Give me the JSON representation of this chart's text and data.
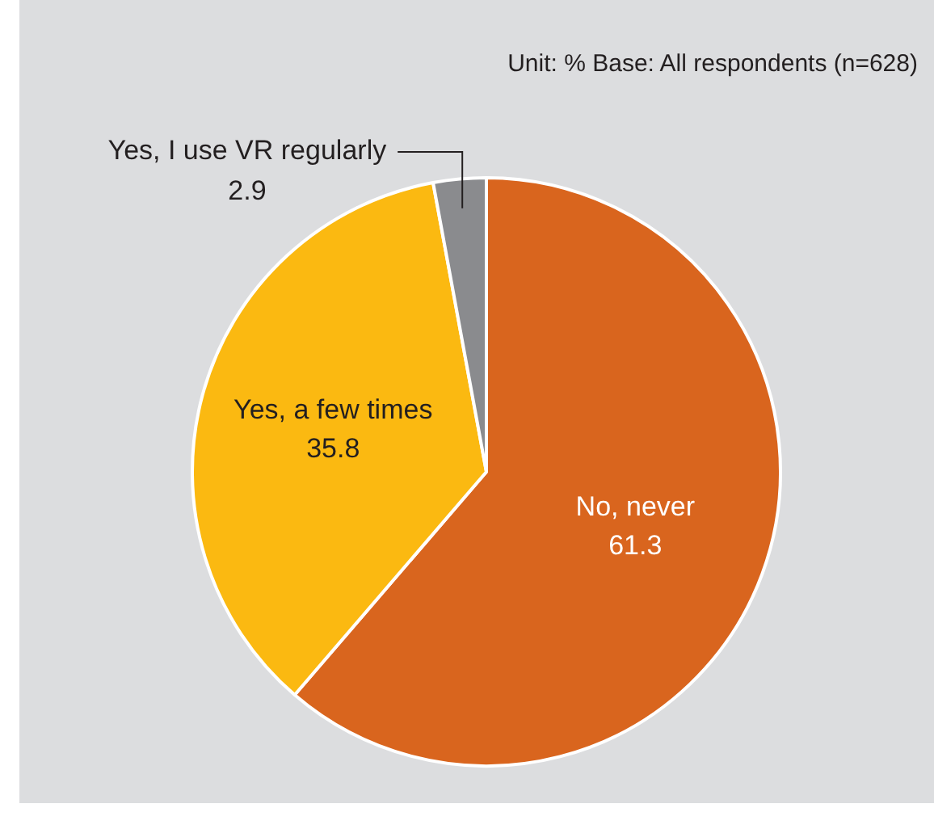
{
  "chart_data": {
    "type": "pie",
    "categories": [
      "No, never",
      "Yes, a few times",
      "Yes, I use VR regularly"
    ],
    "values": [
      61.3,
      35.8,
      2.9
    ],
    "colors": [
      "#d9651e",
      "#fbb911",
      "#8a8b8e"
    ],
    "data_labels": true,
    "legend": false,
    "annotations": [
      "Unit: % Base: All respondents (n=628)"
    ]
  }
}
